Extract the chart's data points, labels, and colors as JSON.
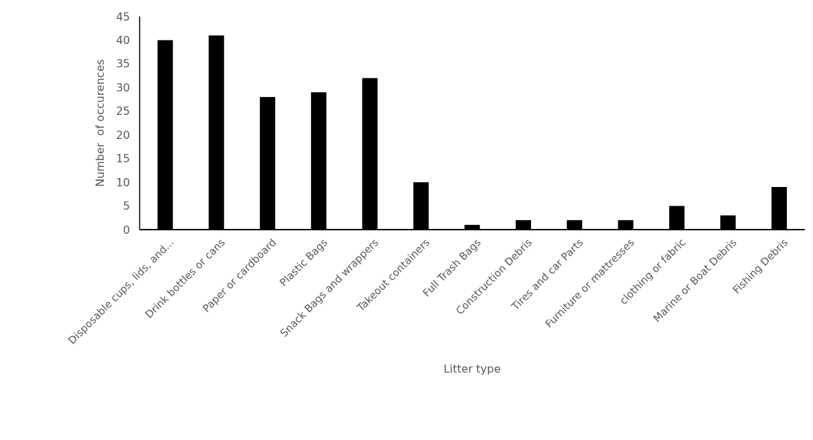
{
  "chart_data": {
    "type": "bar",
    "xlabel": "Litter type",
    "ylabel": "Number  of occurences",
    "categories": [
      "Disposable cups, lids, and...",
      "Drink bottles or cans",
      "Paper or cardboard",
      "Plastic Bags",
      "Snack Bags and wrappers",
      "Takeout containers",
      "Full Trash Bags",
      "Construction Debris",
      "Tires and car Parts",
      "Furniture or mattresses",
      "clothing or fabric",
      "Marine or Boat Debris",
      "Fishing Debris"
    ],
    "values": [
      40,
      41,
      28,
      29,
      32,
      10,
      1,
      2,
      2,
      2,
      5,
      3,
      9
    ],
    "color": "#000000",
    "ylim": [
      0,
      45
    ],
    "yticks": [
      0,
      5,
      10,
      15,
      20,
      25,
      30,
      35,
      40,
      45
    ],
    "grid": false
  }
}
